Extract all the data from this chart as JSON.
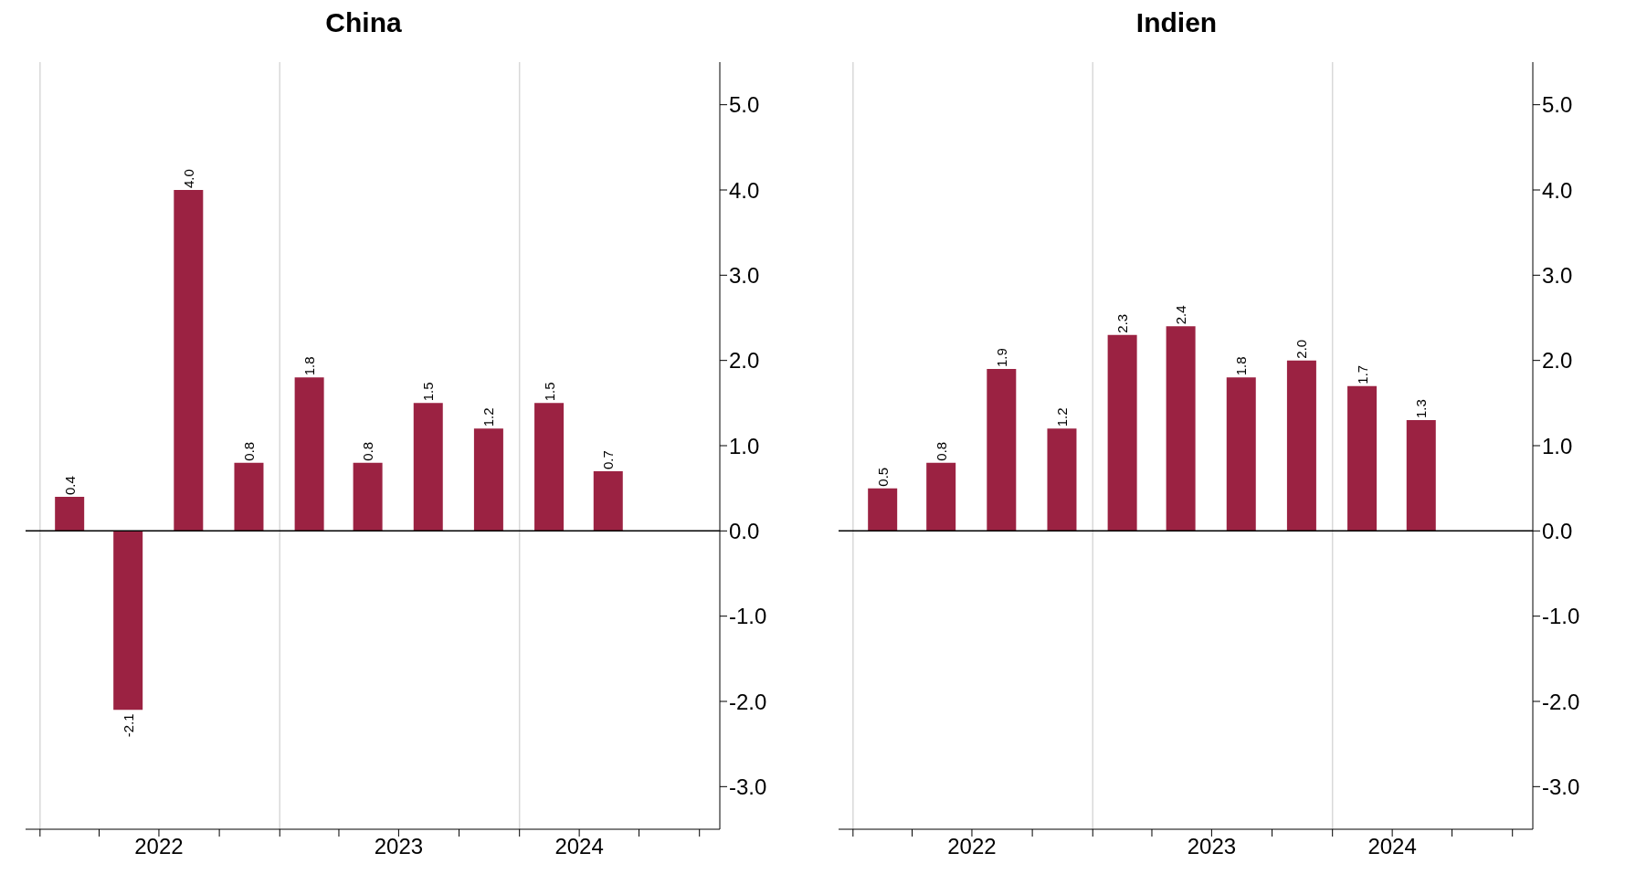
{
  "chart_data": [
    {
      "type": "bar",
      "title": "China",
      "x": [
        "2022-02-15",
        "2022-05-15",
        "2022-08-15",
        "2022-11-15",
        "2023-02-15",
        "2023-05-15",
        "2023-08-15",
        "2023-11-15",
        "2024-02-15",
        "2024-05-15"
      ],
      "values": [
        0.4,
        -2.1,
        4.0,
        0.8,
        1.8,
        0.8,
        1.5,
        1.2,
        1.5,
        0.7
      ],
      "color": "#9b2242",
      "value_labels": [
        "0.4",
        "-2.1",
        "4.0",
        "0.8",
        "1.8",
        "0.8",
        "1.5",
        "1.2",
        "1.5",
        "0.7"
      ],
      "xlim": [
        "2021-12-10",
        "2024-11-01"
      ],
      "xticks": [
        {
          "value": "2022-01-01",
          "label": null
        },
        {
          "value": "2022-04-01",
          "label": null
        },
        {
          "value": "2022-07-01",
          "label": "2022"
        },
        {
          "value": "2022-10-01",
          "label": null
        },
        {
          "value": "2023-01-01",
          "label": null
        },
        {
          "value": "2023-04-01",
          "label": null
        },
        {
          "value": "2023-07-01",
          "label": "2023"
        },
        {
          "value": "2023-10-01",
          "label": null
        },
        {
          "value": "2024-01-01",
          "label": null
        },
        {
          "value": "2024-04-01",
          "label": "2024"
        },
        {
          "value": "2024-07-01",
          "label": null
        },
        {
          "value": "2024-10-01",
          "label": null
        }
      ],
      "ylim": [
        -3.5,
        5.5
      ],
      "yticks": [
        {
          "value": -3,
          "label": "-3.0"
        },
        {
          "value": -2,
          "label": "-2.0"
        },
        {
          "value": -1,
          "label": "-1.0"
        },
        {
          "value": 0,
          "label": "0.0"
        },
        {
          "value": 1,
          "label": "1.0"
        },
        {
          "value": 2,
          "label": "2.0"
        },
        {
          "value": 3,
          "label": "3.0"
        },
        {
          "value": 4,
          "label": "4.0"
        },
        {
          "value": 5,
          "label": "5.0"
        }
      ],
      "ref_lines": [
        {
          "axis": "x",
          "value": "2022-01-01",
          "color": "#d9d9d9"
        },
        {
          "axis": "x",
          "value": "2023-01-01",
          "color": "#d9d9d9"
        },
        {
          "axis": "x",
          "value": "2024-01-01",
          "color": "#d9d9d9"
        },
        {
          "axis": "y",
          "value": 0,
          "color": "#000000"
        }
      ],
      "legend": false
    },
    {
      "type": "bar",
      "title": "Indien",
      "x": [
        "2022-02-15",
        "2022-05-15",
        "2022-08-15",
        "2022-11-15",
        "2023-02-15",
        "2023-05-15",
        "2023-08-15",
        "2023-11-15",
        "2024-02-15",
        "2024-05-15"
      ],
      "values": [
        0.5,
        0.8,
        1.9,
        1.2,
        2.3,
        2.4,
        1.8,
        2.0,
        1.7,
        1.3
      ],
      "color": "#9b2242",
      "value_labels": [
        "0.5",
        "0.8",
        "1.9",
        "1.2",
        "2.3",
        "2.4",
        "1.8",
        "2.0",
        "1.7",
        "1.3"
      ],
      "xlim": [
        "2021-12-10",
        "2024-11-01"
      ],
      "xticks": [
        {
          "value": "2022-01-01",
          "label": null
        },
        {
          "value": "2022-04-01",
          "label": null
        },
        {
          "value": "2022-07-01",
          "label": "2022"
        },
        {
          "value": "2022-10-01",
          "label": null
        },
        {
          "value": "2023-01-01",
          "label": null
        },
        {
          "value": "2023-04-01",
          "label": null
        },
        {
          "value": "2023-07-01",
          "label": "2023"
        },
        {
          "value": "2023-10-01",
          "label": null
        },
        {
          "value": "2024-01-01",
          "label": null
        },
        {
          "value": "2024-04-01",
          "label": "2024"
        },
        {
          "value": "2024-07-01",
          "label": null
        },
        {
          "value": "2024-10-01",
          "label": null
        }
      ],
      "ylim": [
        -3.5,
        5.5
      ],
      "yticks": [
        {
          "value": -3,
          "label": "-3.0"
        },
        {
          "value": -2,
          "label": "-2.0"
        },
        {
          "value": -1,
          "label": "-1.0"
        },
        {
          "value": 0,
          "label": "0.0"
        },
        {
          "value": 1,
          "label": "1.0"
        },
        {
          "value": 2,
          "label": "2.0"
        },
        {
          "value": 3,
          "label": "3.0"
        },
        {
          "value": 4,
          "label": "4.0"
        },
        {
          "value": 5,
          "label": "5.0"
        }
      ],
      "ref_lines": [
        {
          "axis": "x",
          "value": "2022-01-01",
          "color": "#d9d9d9"
        },
        {
          "axis": "x",
          "value": "2023-01-01",
          "color": "#d9d9d9"
        },
        {
          "axis": "x",
          "value": "2024-01-01",
          "color": "#d9d9d9"
        },
        {
          "axis": "y",
          "value": 0,
          "color": "#000000"
        }
      ],
      "legend": false
    }
  ]
}
